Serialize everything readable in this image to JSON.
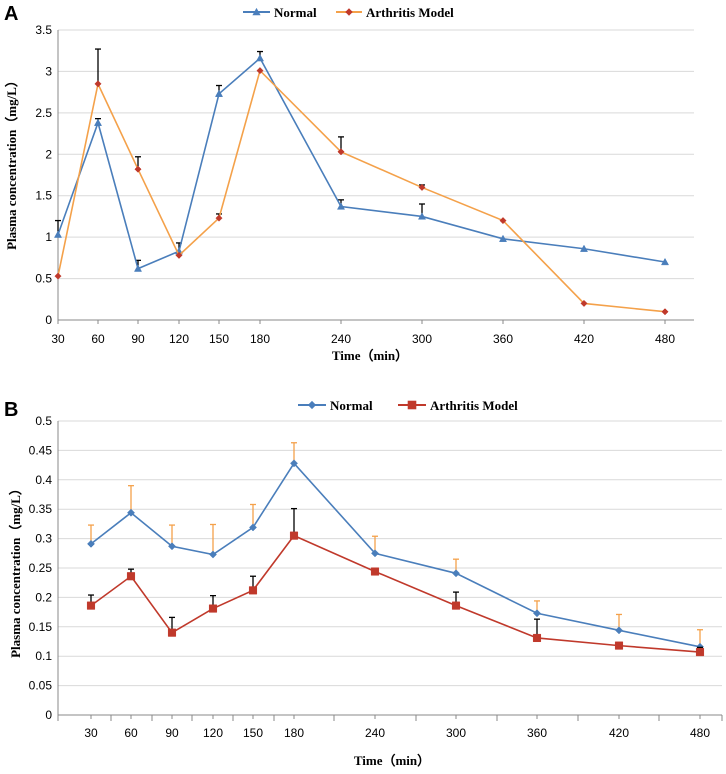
{
  "chart_data": [
    {
      "panel": "A",
      "type": "line",
      "categories": [
        "30",
        "60",
        "90",
        "120",
        "150",
        "180",
        "240",
        "300",
        "360",
        "420",
        "480"
      ],
      "xlabel": "Time（min）",
      "ylabel": "Plasma concentration（mg/L）",
      "ylim": [
        0,
        3.5
      ],
      "yticks": [
        "0",
        "0.5",
        "1",
        "1.5",
        "2",
        "2.5",
        "3",
        "3.5"
      ],
      "grid": true,
      "legend": "top-center",
      "series": [
        {
          "name": "Normal",
          "color": "#4a7ebb",
          "marker": "triangle",
          "values": [
            1.03,
            2.38,
            0.62,
            0.83,
            2.73,
            3.16,
            1.37,
            1.25,
            0.98,
            0.86,
            0.7
          ],
          "errors": [
            0.17,
            0.05,
            0.1,
            0.1,
            0.1,
            0.08,
            0.08,
            0.15,
            0,
            0,
            0
          ],
          "error_color": "#000000"
        },
        {
          "name": "Arthritis Model",
          "color": "#f4a14a",
          "marker_color": "#c0392b",
          "marker": "diamond",
          "values": [
            0.53,
            2.85,
            1.82,
            0.78,
            1.23,
            3.01,
            2.03,
            1.6,
            1.2,
            0.2,
            0.1
          ],
          "errors": [
            0,
            0.42,
            0.15,
            0,
            0.05,
            0,
            0.18,
            0.03,
            0,
            0,
            0
          ],
          "error_color": "#000000"
        }
      ]
    },
    {
      "panel": "B",
      "type": "line",
      "categories": [
        "30",
        "60",
        "90",
        "120",
        "150",
        "180",
        "240",
        "300",
        "360",
        "420",
        "480"
      ],
      "xlabel": "Time（min）",
      "ylabel": "Plasma concentration（mg/L）",
      "ylim": [
        0,
        0.5
      ],
      "yticks": [
        "0",
        "0.05",
        "0.1",
        "0.15",
        "0.2",
        "0.25",
        "0.3",
        "0.35",
        "0.4",
        "0.45",
        "0.5"
      ],
      "grid": true,
      "legend": "top-center",
      "series": [
        {
          "name": "Normal",
          "color": "#4a7ebb",
          "marker": "diamond",
          "values": [
            0.291,
            0.344,
            0.287,
            0.273,
            0.319,
            0.428,
            0.275,
            0.241,
            0.173,
            0.144,
            0.116
          ],
          "errors": [
            0.032,
            0.046,
            0.036,
            0.051,
            0.039,
            0.035,
            0.029,
            0.024,
            0.021,
            0.027,
            0.029
          ],
          "error_color": "#f4a14a"
        },
        {
          "name": "Arthritis Model",
          "color": "#c0392b",
          "marker": "square",
          "values": [
            0.186,
            0.236,
            0.14,
            0.181,
            0.212,
            0.305,
            0.244,
            0.186,
            0.131,
            0.118,
            0.107
          ],
          "errors": [
            0.018,
            0.012,
            0.026,
            0.022,
            0.024,
            0.046,
            0,
            0.023,
            0.032,
            0,
            0.008
          ],
          "error_color": "#000000"
        }
      ]
    }
  ]
}
